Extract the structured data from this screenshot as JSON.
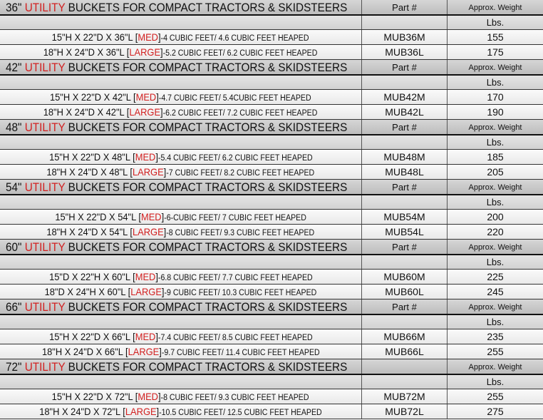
{
  "title_highlight": "UTILITY",
  "title_rest": " BUCKETS FOR COMPACT TRACTORS & SKIDSTEERS",
  "weight_label": "Approx. Weight",
  "unit_label": "Lbs.",
  "bracket_open": "[",
  "bracket_close": "]",
  "colors": {
    "highlight": "#d21f1f",
    "header_bg": "#c8c8c8"
  },
  "sections": [
    {
      "size": "36\"",
      "part_label": "Part #",
      "rows": [
        {
          "dims": "15\"H X 22\"D X 36\"L ",
          "grade": "MED",
          "spec": "-4 CUBIC FEET/ 4.6 CUBIC FEET HEAPED",
          "part": "MUB36M",
          "weight": "155"
        },
        {
          "dims": "18\"H X 24\"D X 36\"L ",
          "grade": "LARGE",
          "spec": "-5.2 CUBIC FEET/ 6.2 CUBIC FEET HEAPED",
          "part": "MUB36L",
          "weight": "175"
        }
      ]
    },
    {
      "size": "42\"",
      "part_label": "Part #",
      "rows": [
        {
          "dims": "15\"H X 22\"D X 42\"L ",
          "grade": "MED",
          "spec": "-4.7 CUBIC FEET/ 5.4CUBIC FEET HEAPED",
          "part": "MUB42M",
          "weight": "170"
        },
        {
          "dims": "18\"H X 24\"D X 42\"L ",
          "grade": "LARGE",
          "spec": "-6.2 CUBIC FEET/ 7.2 CUBIC FEET HEAPED",
          "part": "MUB42L",
          "weight": "190"
        }
      ]
    },
    {
      "size": "48\"",
      "part_label": "Part #",
      "rows": [
        {
          "dims": "15\"H X 22\"D X 48\"L ",
          "grade": "MED",
          "spec": "-5.4 CUBIC FEET/ 6.2 CUBIC FEET HEAPED",
          "part": "MUB48M",
          "weight": "185"
        },
        {
          "dims": "18\"H X 24\"D X 48\"L ",
          "grade": "LARGE",
          "spec": "-7 CUBIC FEET/ 8.2 CUBIC FEET HEAPED",
          "part": "MUB48L",
          "weight": "205"
        }
      ]
    },
    {
      "size": "54\"",
      "part_label": "Part #",
      "rows": [
        {
          "dims": "15\"H X 22\"D X 54\"L ",
          "grade": "MED",
          "spec": "-6-CUBIC FEET/ 7 CUBIC FEET HEAPED",
          "part": "MUB54M",
          "weight": "200"
        },
        {
          "dims": "18\"H X 24\"D X 54\"L ",
          "grade": "LARGE",
          "spec": "-8 CUBIC FEET/ 9.3 CUBIC FEET HEAPED",
          "part": "MUB54L",
          "weight": "220"
        }
      ]
    },
    {
      "size": "60\"",
      "part_label": "Part #",
      "rows": [
        {
          "dims": "15\"D X 22\"H X 60\"L ",
          "grade": "MED",
          "spec": "-6.8 CUBIC FEET/ 7.7 CUBIC FEET HEAPED",
          "part": "MUB60M",
          "weight": "225"
        },
        {
          "dims": "18\"D X 24\"H X 60\"L ",
          "grade": "LARGE",
          "spec": "-9 CUBIC FEET/ 10.3 CUBIC FEET HEAPED",
          "part": "MUB60L",
          "weight": "245"
        }
      ]
    },
    {
      "size": "66\"",
      "part_label": "Part #",
      "rows": [
        {
          "dims": "15\"H X 22\"D X 66\"L ",
          "grade": "MED",
          "spec": "-7.4 CUBIC FEET/ 8.5 CUBIC FEET HEAPED",
          "part": "MUB66M",
          "weight": "235"
        },
        {
          "dims": "18\"H X 24\"D X 66\"L ",
          "grade": "LARGE",
          "spec": "-9.7 CUBIC FEET/ 11.4 CUBIC FEET HEAPED",
          "part": "MUB66L",
          "weight": "255"
        }
      ]
    },
    {
      "size": "72\"",
      "part_label": "",
      "rows": [
        {
          "dims": "15\"H X 22\"D X 72\"L ",
          "grade": "MED",
          "spec": "-8 CUBIC FEET/ 9.3 CUBIC FEET HEAPED",
          "part": "MUB72M",
          "weight": "255"
        },
        {
          "dims": "18\"H X 24\"D X 72\"L ",
          "grade": "LARGE",
          "spec": "-10.5 CUBIC FEET/ 12.5 CUBIC FEET HEAPED",
          "part": "MUB72L",
          "weight": "275"
        }
      ]
    }
  ]
}
